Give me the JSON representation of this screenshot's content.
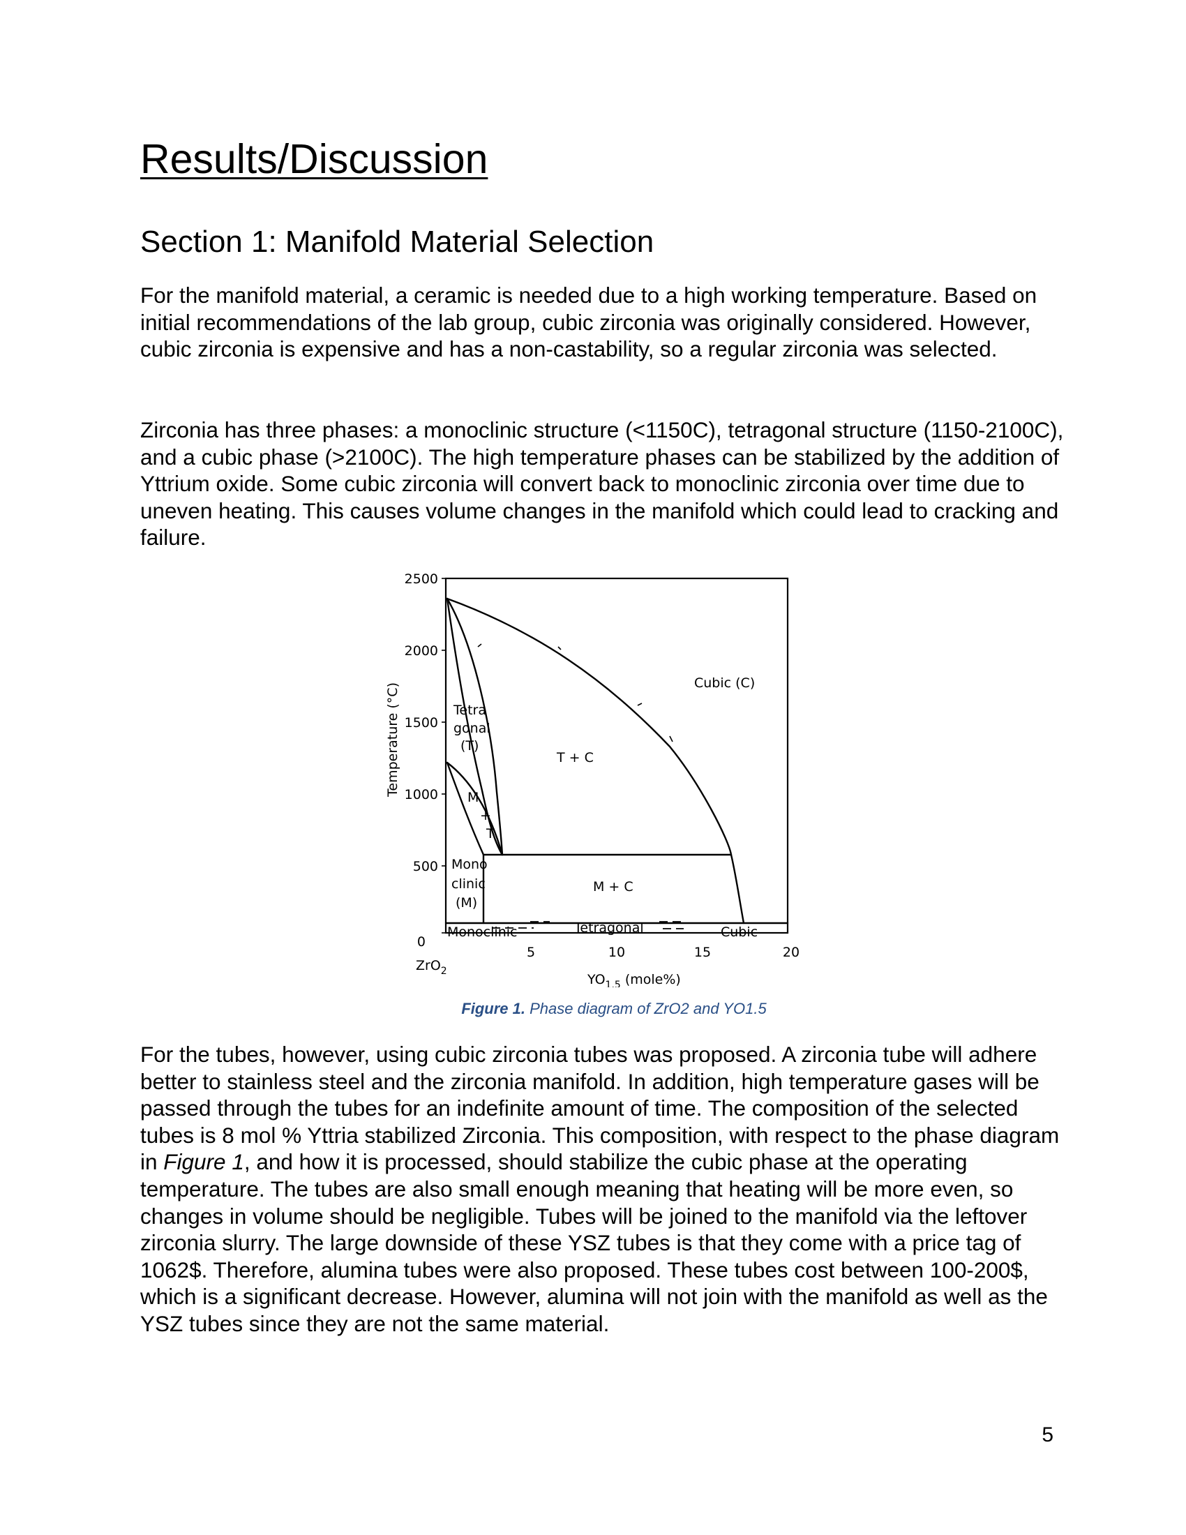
{
  "page_title": "Results/Discussion",
  "section_heading": "Section 1: Manifold Material Selection",
  "paragraph_1": "For the manifold material, a ceramic is needed due to a high working temperature. Based on initial recommendations of the lab group, cubic zirconia was originally considered. However, cubic zirconia is expensive and has a non-castability, so a regular zirconia was selected.",
  "paragraph_2": "Zirconia has three phases: a monoclinic structure (<1150C), tetragonal structure (1150-2100C), and a cubic phase (>2100C). The high temperature phases can be stabilized by the addition of Yttrium oxide. Some cubic zirconia will convert back to monoclinic zirconia over time due to uneven heating. This causes volume changes in the manifold which could lead to cracking and failure.",
  "paragraph_3": {
    "before": "For the tubes, however, using cubic zirconia tubes was proposed. A zirconia tube will adhere better to stainless steel and the zirconia manifold. In addition, high temperature gases will be passed through the tubes for an indefinite amount of time. The composition of the selected tubes is 8 mol % Yttria stabilized Zirconia. This composition, with respect to the phase diagram in ",
    "emphasis": "Figure 1",
    "after": ", and how it is processed, should stabilize the cubic phase at the operating temperature. The tubes are also small enough meaning that heating will be more even, so changes in volume should be negligible. Tubes will be joined to the manifold via the leftover zirconia slurry. The large downside of these YSZ tubes is that they come with a price tag of 1062$. Therefore, alumina tubes were also proposed. These tubes cost between 100-200$, which is a significant decrease. However, alumina will not join with the manifold as well as the YSZ tubes since they are not the same material."
  },
  "figure": {
    "caption_label": "Figure 1.",
    "caption_text": "Phase diagram of ZrO2 and YO1.5",
    "y_axis_label": "Temperature (°C)",
    "y_ticks": [
      "2500",
      "2000",
      "1500",
      "1000",
      "500",
      "0"
    ],
    "x_ticks": [
      "5",
      "10",
      "15",
      "20"
    ],
    "x_origin_label": "ZrO",
    "x_origin_sub": "2",
    "x_axis_label_main": "YO",
    "x_axis_label_sub": "1.5",
    "x_axis_label_unit": " (mole%)",
    "region_cubic": "Cubic (C)",
    "region_tetragonal": [
      "Tetra",
      "gonal",
      "(T)"
    ],
    "region_t_plus_c": "T + C",
    "region_m_plus_t": [
      "M",
      "+",
      "T"
    ],
    "region_monoclinic": [
      "Mono",
      "clinic",
      "(M)"
    ],
    "region_m_plus_c": "M + C",
    "bottom_monoclinic": "Monoclinic",
    "bottom_tetragonal": "Tetragonal",
    "bottom_cubic": "Cubic"
  },
  "page_number": "5"
}
